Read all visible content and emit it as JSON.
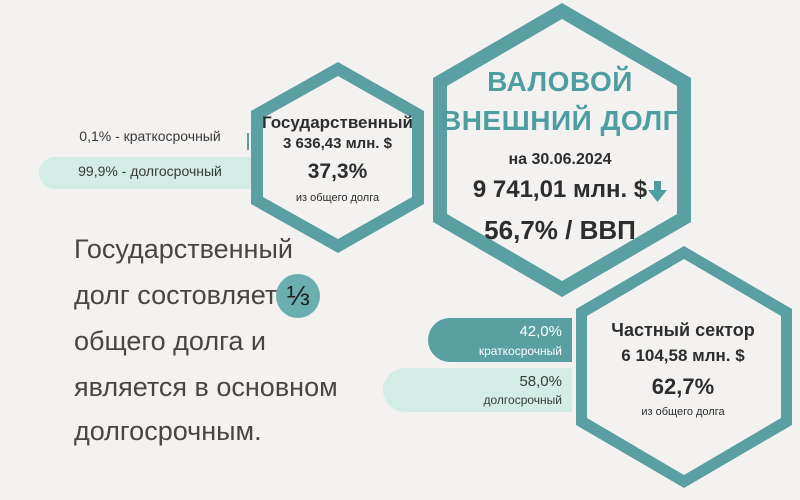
{
  "colors": {
    "background": "#f4f2f0",
    "teal": "#5a9fa2",
    "teal_dark": "#4e9da1",
    "mint": "#d4ece6",
    "text": "#2d2d2d"
  },
  "government": {
    "title": "Государственный",
    "amount": "3 636,43 млн. $",
    "percent": "37,3%",
    "note": "из общего долга",
    "short_term": "0,1% - краткосрочный",
    "long_term": "99,9% - долгосрочный"
  },
  "gross": {
    "title_line1": "ВАЛОВОЙ",
    "title_line2": "ВНЕШНИЙ ДОЛГ",
    "date": "на 30.06.2024",
    "amount": "9 741,01 млн. $",
    "trend_icon": "arrow-down-icon",
    "gdp": "56,7% / ВВП"
  },
  "private": {
    "title": "Частный сектор",
    "amount": "6 104,58 млн. $",
    "percent": "62,7%",
    "note": "из общего долга",
    "short_pct": "42,0%",
    "short_label": "краткосрочный",
    "long_pct": "58,0%",
    "long_label": "долгосрочный"
  },
  "statement": {
    "line1": "Государственный",
    "line2": "долг состовляет",
    "line3": "общего долга и",
    "line4": "является в основном",
    "line5": "долгосрочным.",
    "fraction": "⅓"
  }
}
